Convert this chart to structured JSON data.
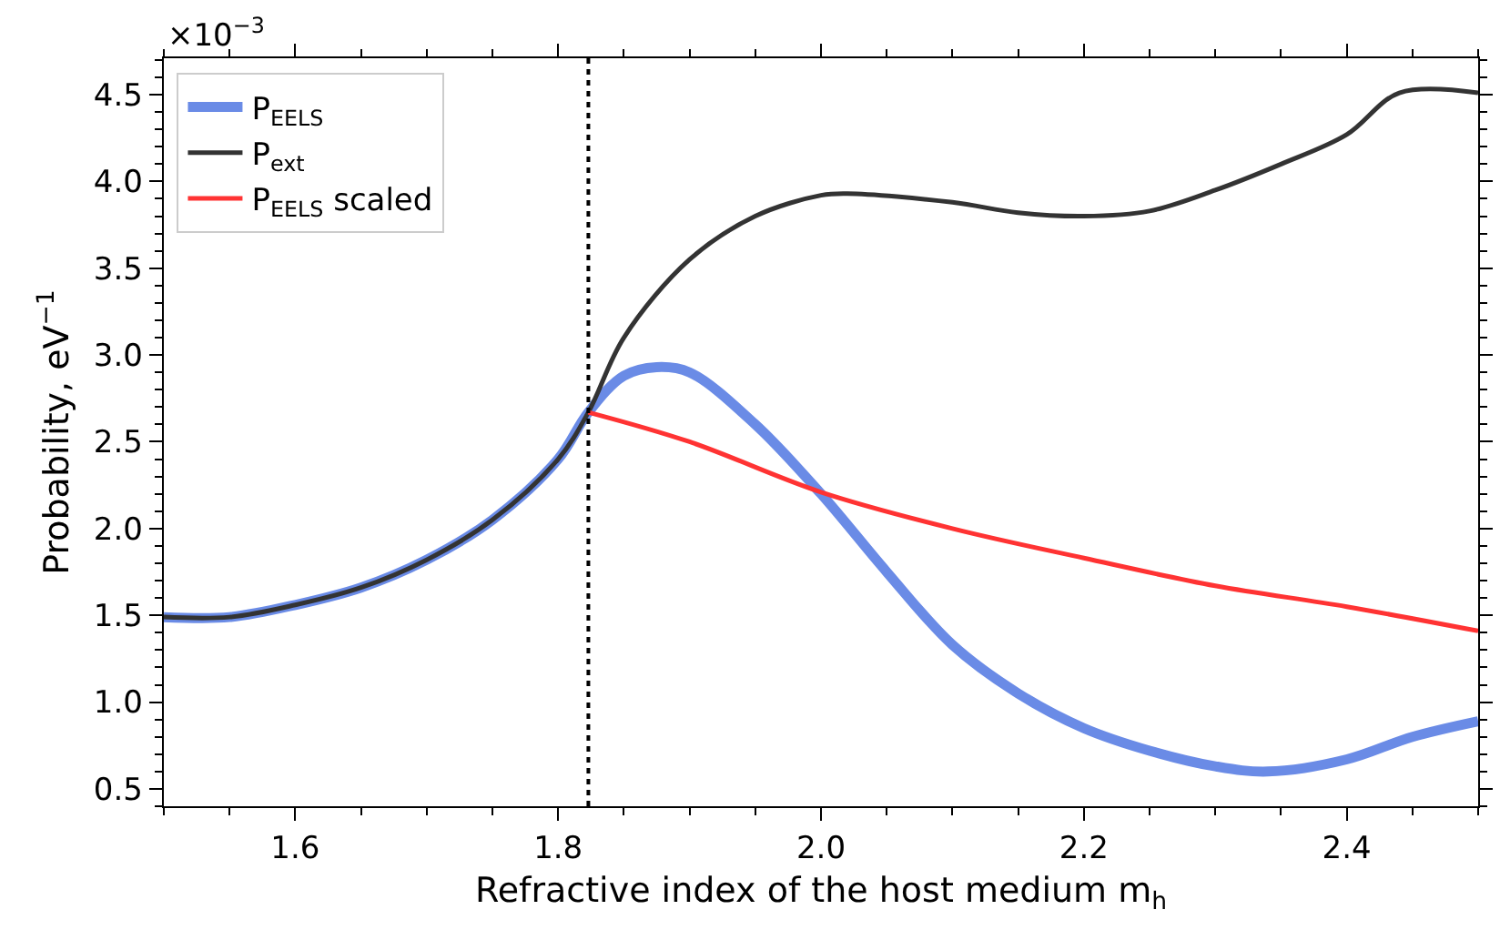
{
  "chart_data": {
    "type": "line",
    "xlabel": "Refractive index of the host medium m$_{h}$",
    "ylabel": "Probability, eV$^{−1}$",
    "annotations": [
      "×10$^{−3}$"
    ],
    "xlim": [
      1.5,
      2.5
    ],
    "xticks": [
      1.6,
      1.8,
      {
        "value": 2,
        "label": "2.0"
      },
      2.2,
      2.4
    ],
    "ylim": [
      0.4,
      4.71
    ],
    "yticks": [
      0.5,
      {
        "value": 1,
        "label": "1.0"
      },
      1.5,
      {
        "value": 2,
        "label": "2.0"
      },
      2.5,
      {
        "value": 3,
        "label": "3.0"
      },
      3.5,
      {
        "value": 4,
        "label": "4.0"
      },
      4.5
    ],
    "legend": "top left",
    "marker": "none",
    "line_style": "solid",
    "ref_lines": [
      {
        "axis": "x",
        "value": 1.823,
        "label": null,
        "color": "#000000",
        "line_style": "dotted"
      }
    ],
    "series": [
      {
        "name": "P$_{EELS}$",
        "color": "#6a8be6",
        "x": [
          1.5,
          1.55,
          1.6,
          1.65,
          1.7,
          1.75,
          1.8,
          1.823,
          1.85,
          1.875,
          1.9,
          1.95,
          2.0,
          2.05,
          2.1,
          2.15,
          2.2,
          2.25,
          2.3,
          2.34,
          2.4,
          2.45,
          2.5
        ],
        "values": [
          1.49,
          1.49,
          1.56,
          1.66,
          1.82,
          2.05,
          2.4,
          2.67,
          2.88,
          2.93,
          2.9,
          2.6,
          2.2,
          1.75,
          1.33,
          1.05,
          0.85,
          0.72,
          0.63,
          0.6,
          0.67,
          0.8,
          0.89
        ]
      },
      {
        "name": "P$_{ext}$",
        "color": "#333333",
        "x": [
          1.5,
          1.55,
          1.6,
          1.65,
          1.7,
          1.75,
          1.8,
          1.823,
          1.85,
          1.9,
          1.95,
          2.0,
          2.02,
          2.1,
          2.15,
          2.2,
          2.25,
          2.3,
          2.35,
          2.4,
          2.44,
          2.5
        ],
        "values": [
          1.49,
          1.49,
          1.56,
          1.66,
          1.82,
          2.05,
          2.4,
          2.67,
          3.1,
          3.55,
          3.8,
          3.92,
          3.93,
          3.88,
          3.82,
          3.8,
          3.83,
          3.95,
          4.1,
          4.27,
          4.51,
          4.51
        ]
      },
      {
        "name": "P$_{EELS}$ scaled",
        "color": "#ff3333",
        "x": [
          1.823,
          1.9,
          2.0,
          2.1,
          2.2,
          2.3,
          2.4,
          2.5
        ],
        "values": [
          2.67,
          2.5,
          2.21,
          2.0,
          1.83,
          1.67,
          1.55,
          1.41
        ]
      }
    ]
  }
}
